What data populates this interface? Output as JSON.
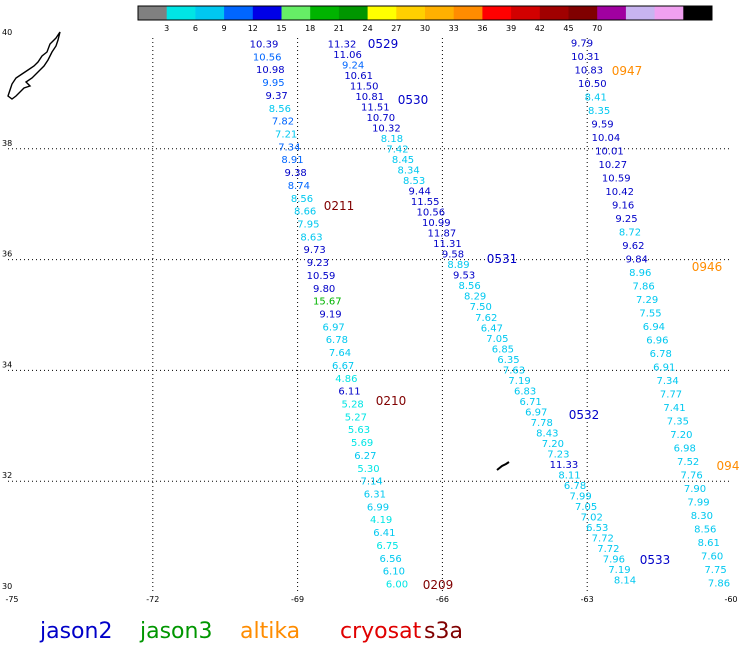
{
  "colorbar": {
    "colors": [
      "#808080",
      "#00e5e5",
      "#00c8f0",
      "#0066ff",
      "#0000e6",
      "#66ee66",
      "#00b400",
      "#009600",
      "#ffff00",
      "#ffd000",
      "#ffb000",
      "#ff8c00",
      "#ff0000",
      "#d20000",
      "#a00000",
      "#800000",
      "#a000a0",
      "#c8b4f0",
      "#f0a0f0",
      "#000000"
    ],
    "labels": [
      "3",
      "6",
      "9",
      "12",
      "15",
      "18",
      "21",
      "24",
      "27",
      "30",
      "33",
      "36",
      "39",
      "42",
      "45",
      "70"
    ]
  },
  "axes": {
    "lon_ticks": [
      -75,
      -72,
      -69,
      -66,
      -63,
      -60
    ],
    "lat_ticks": [
      30,
      32,
      34,
      36,
      38,
      40
    ],
    "lon_range": [
      -75,
      -60
    ],
    "lat_range": [
      30,
      40
    ],
    "grid": "dotted"
  },
  "tracks": [
    {
      "values": [
        "10.39",
        "10.56",
        "10.98",
        "9.95",
        "9.37",
        "8.56",
        "7.82",
        "7.21",
        "7.34",
        "8.91",
        "9.38",
        "8.74",
        "8.56",
        "8.66",
        "7.95",
        "8.63",
        "9.73",
        "9.23",
        "10.59",
        "9.80",
        "15.67",
        "9.19",
        "6.97",
        "6.78",
        "7.64",
        "6.67",
        "4.86",
        "6.11",
        "5.28",
        "5.27",
        "5.63",
        "5.69",
        "6.27",
        "5.30",
        "7.14",
        "6.31",
        "6.99",
        "4.19",
        "6.41",
        "6.75",
        "6.56",
        "6.10",
        "6.00"
      ],
      "colors": [
        "#0000c8",
        "#0066ff",
        "#0000c8",
        "#0066ff",
        "#0000c8",
        "#00c8f0",
        "#0066ff",
        "#00c8f0",
        "#0066ff",
        "#0066ff",
        "#0000c8",
        "#0066ff",
        "#00c8f0",
        "#00c8f0",
        "#00c8f0",
        "#00c8f0",
        "#0000c8",
        "#0000c8",
        "#0000c8",
        "#0000c8",
        "#00b400",
        "#0000c8",
        "#00c8f0",
        "#00c8f0",
        "#00c8f0",
        "#00c8f0",
        "#00e5e5",
        "#0000c8",
        "#00e5e5",
        "#00e5e5",
        "#00e5e5",
        "#00e5e5",
        "#00c8f0",
        "#00e5e5",
        "#00c8f0",
        "#00c8f0",
        "#00c8f0",
        "#00e5e5",
        "#00c8f0",
        "#00e5e5",
        "#00c8f0",
        "#00c8f0",
        "#00e5e5"
      ]
    },
    {
      "values": [
        "11.32",
        "11.06",
        "9.24",
        "10.61",
        "11.50",
        "10.81",
        "11.51",
        "10.70",
        "10.32",
        "8.18",
        "7.42",
        "8.45",
        "8.34",
        "8.53",
        "9.44",
        "11.55",
        "10.56",
        "10.99",
        "11.87",
        "11.31",
        "9.58",
        "8.89",
        "9.53",
        "8.56",
        "8.29",
        "7.50",
        "7.62",
        "6.47",
        "7.05",
        "6.85",
        "6.35",
        "7.63",
        "7.19",
        "6.83",
        "6.71",
        "6.97",
        "7.78",
        "8.43",
        "7.20",
        "7.23",
        "11.33",
        "8.11",
        "6.78",
        "7.99",
        "7.05",
        "7.02",
        "6.53",
        "7.72",
        "7.72",
        "7.96",
        "7.19",
        "8.14"
      ],
      "colors": [
        "#0000c8",
        "#0000c8",
        "#0066ff",
        "#0000c8",
        "#0000c8",
        "#0000c8",
        "#0000c8",
        "#0000c8",
        "#0000c8",
        "#00c8f0",
        "#00c8f0",
        "#00c8f0",
        "#00c8f0",
        "#00c8f0",
        "#0000c8",
        "#0000c8",
        "#0000c8",
        "#0000c8",
        "#0000c8",
        "#0000c8",
        "#0000c8",
        "#00c8f0",
        "#0000c8",
        "#00c8f0",
        "#00c8f0",
        "#00c8f0",
        "#00c8f0",
        "#00c8f0",
        "#00c8f0",
        "#00c8f0",
        "#00c8f0",
        "#00c8f0",
        "#00c8f0",
        "#00c8f0",
        "#00c8f0",
        "#00c8f0",
        "#00c8f0",
        "#00c8f0",
        "#00c8f0",
        "#00c8f0",
        "#0000c8",
        "#00c8f0",
        "#00c8f0",
        "#00c8f0",
        "#00c8f0",
        "#00c8f0",
        "#00c8f0",
        "#00c8f0",
        "#00c8f0",
        "#00c8f0",
        "#00c8f0",
        "#00c8f0"
      ]
    },
    {
      "values": [
        "9.79",
        "10.31",
        "10.83",
        "10.50",
        "8.41",
        "8.35",
        "9.59",
        "10.04",
        "10.01",
        "10.27",
        "10.59",
        "10.42",
        "9.16",
        "9.25",
        "8.72",
        "9.62",
        "9.84",
        "8.96",
        "7.86",
        "7.29",
        "7.55",
        "6.94",
        "6.96",
        "6.78",
        "6.91",
        "7.34",
        "7.77",
        "7.41",
        "7.35",
        "7.20",
        "6.98",
        "7.52",
        "7.76",
        "7.90",
        "7.99",
        "8.30",
        "8.56",
        "8.61",
        "7.60",
        "7.75",
        "7.86"
      ],
      "colors": [
        "#0000c8",
        "#0000c8",
        "#0000c8",
        "#0000c8",
        "#00c8f0",
        "#00c8f0",
        "#0000c8",
        "#0000c8",
        "#0000c8",
        "#0000c8",
        "#0000c8",
        "#0000c8",
        "#0000c8",
        "#0000c8",
        "#00c8f0",
        "#0000c8",
        "#0000c8",
        "#00c8f0",
        "#00c8f0",
        "#00c8f0",
        "#00c8f0",
        "#00c8f0",
        "#00c8f0",
        "#00c8f0",
        "#00c8f0",
        "#00c8f0",
        "#00c8f0",
        "#00c8f0",
        "#00c8f0",
        "#00c8f0",
        "#00c8f0",
        "#00c8f0",
        "#00c8f0",
        "#00c8f0",
        "#00c8f0",
        "#00c8f0",
        "#00c8f0",
        "#00c8f0",
        "#00c8f0",
        "#00c8f0",
        "#00c8f0"
      ]
    }
  ],
  "pass_labels": [
    {
      "text": "0529",
      "color": "#0000c8"
    },
    {
      "text": "0530",
      "color": "#0000c8"
    },
    {
      "text": "0531",
      "color": "#0000c8"
    },
    {
      "text": "0532",
      "color": "#0000c8"
    },
    {
      "text": "0533",
      "color": "#0000c8"
    },
    {
      "text": "0211",
      "color": "#800000"
    },
    {
      "text": "0210",
      "color": "#800000"
    },
    {
      "text": "0209",
      "color": "#800000"
    },
    {
      "text": "0947",
      "color": "#ff8c00"
    },
    {
      "text": "0946",
      "color": "#ff8c00"
    },
    {
      "text": "094",
      "color": "#ff8c00"
    }
  ],
  "legend": [
    {
      "text": "jason2",
      "color": "#0000c8"
    },
    {
      "text": "jason3",
      "color": "#009600"
    },
    {
      "text": "altika",
      "color": "#ff8c00"
    },
    {
      "text": "cryosat",
      "color": "#e00000"
    },
    {
      "text": "s3a",
      "color": "#800000"
    }
  ]
}
